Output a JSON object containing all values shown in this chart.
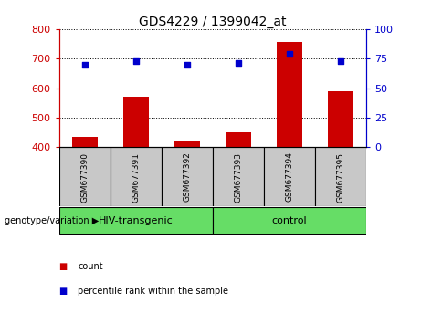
{
  "title": "GDS4229 / 1399042_at",
  "samples": [
    "GSM677390",
    "GSM677391",
    "GSM677392",
    "GSM677393",
    "GSM677394",
    "GSM677395"
  ],
  "counts": [
    435,
    570,
    420,
    450,
    755,
    590
  ],
  "percentile_ranks": [
    70,
    73,
    70,
    71,
    79,
    73
  ],
  "ylim_left": [
    400,
    800
  ],
  "yticks_left": [
    400,
    500,
    600,
    700,
    800
  ],
  "ylim_right": [
    0,
    100
  ],
  "yticks_right": [
    0,
    25,
    50,
    75,
    100
  ],
  "bar_color": "#CC0000",
  "dot_color": "#0000CC",
  "bar_width": 0.5,
  "left_axis_color": "#CC0000",
  "right_axis_color": "#0000CC",
  "legend_items": [
    "count",
    "percentile rank within the sample"
  ],
  "bg_color_samples": "#C8C8C8",
  "bg_color_groups": "#66DD66",
  "group_labels": [
    "HIV-transgenic",
    "control"
  ],
  "group_label_prefix": "genotype/variation"
}
